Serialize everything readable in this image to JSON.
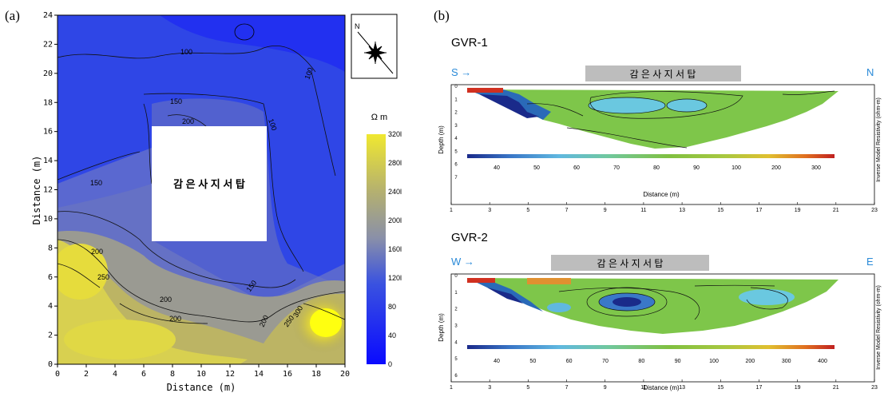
{
  "panel_a": {
    "label": "(a)",
    "x_axis_label": "Distance (m)",
    "y_axis_label": "Distance (m)",
    "x_ticks": [
      "0",
      "2",
      "4",
      "6",
      "8",
      "10",
      "12",
      "14",
      "16",
      "18",
      "20"
    ],
    "y_ticks": [
      "0",
      "2",
      "4",
      "6",
      "8",
      "10",
      "12",
      "14",
      "16",
      "18",
      "20",
      "22",
      "24"
    ],
    "box_label": "감 은 사 지 서 탑",
    "contour_labels": [
      "100",
      "100",
      "150",
      "200",
      "150",
      "200",
      "250",
      "200",
      "200",
      "150",
      "200",
      "250",
      "300",
      "100"
    ],
    "north_label": "N",
    "colorbar_title": "Ω m",
    "colorbar_ticks": [
      "0",
      "40",
      "80",
      "120",
      "160",
      "200",
      "240",
      "280",
      "320"
    ],
    "colorbar_display_ticks": [
      "320l",
      "280l",
      "240l",
      "200l",
      "160l",
      "120l",
      "80",
      "40",
      "0"
    ]
  },
  "panel_b": {
    "label": "(b)",
    "sections": [
      {
        "name": "GVR-1",
        "start_dir": "S →",
        "end_dir": "N",
        "bar_label": "감 은 사 지 서 탑",
        "depth_label": "Depth (m)",
        "depth_ticks": [
          "0",
          "1",
          "2",
          "3",
          "4",
          "5",
          "6",
          "7"
        ],
        "distance_label": "Distance (m)",
        "distance_ticks": [
          "1",
          "3",
          "5",
          "7",
          "9",
          "11",
          "13",
          "15",
          "17",
          "19",
          "21",
          "23"
        ],
        "colorbar_ticks": [
          "40",
          "50",
          "60",
          "70",
          "80",
          "90",
          "100",
          "200",
          "300"
        ],
        "right_label": "Inverse Model Resistivity (ohm-m)"
      },
      {
        "name": "GVR-2",
        "start_dir": "W →",
        "end_dir": "E",
        "bar_label": "감 은 사 지 서 탑",
        "depth_label": "Depth (m)",
        "depth_ticks": [
          "0",
          "1",
          "2",
          "3",
          "4",
          "5",
          "6"
        ],
        "distance_label": "Distance (m)",
        "distance_ticks": [
          "1",
          "3",
          "5",
          "7",
          "9",
          "11",
          "13",
          "15",
          "17",
          "19",
          "21",
          "23"
        ],
        "colorbar_ticks": [
          "40",
          "50",
          "60",
          "70",
          "80",
          "90",
          "100",
          "200",
          "300",
          "400"
        ],
        "right_label": "Inverse Model Resistivity (ohm-m)"
      }
    ]
  },
  "chart_data": [
    {
      "type": "heatmap",
      "title": "",
      "xlabel": "Distance (m)",
      "ylabel": "Distance (m)",
      "xlim": [
        0,
        20
      ],
      "ylim": [
        0,
        24
      ],
      "colorbar": {
        "label": "Ω m",
        "range": [
          0,
          320
        ],
        "colors": [
          "#1a1aff",
          "#5a6ad0",
          "#8f96a8",
          "#c8c080",
          "#e8e040"
        ]
      },
      "excluded_region": {
        "x": [
          6.5,
          14.5
        ],
        "y": [
          8.5,
          16.5
        ],
        "label": "감 은 사 지 서 탑"
      },
      "contour_levels": [
        100,
        150,
        200,
        250,
        300
      ]
    },
    {
      "type": "heatmap",
      "title": "GVR-1",
      "xlabel": "Distance (m)",
      "ylabel": "Depth (m)",
      "xlim": [
        1,
        23
      ],
      "ylim": [
        7,
        0
      ],
      "colorbar": {
        "label": "Inverse Model Resistivity (ohm-m)",
        "ticks": [
          40,
          50,
          60,
          70,
          80,
          90,
          100,
          200,
          300
        ]
      }
    },
    {
      "type": "heatmap",
      "title": "GVR-2",
      "xlabel": "Distance (m)",
      "ylabel": "Depth (m)",
      "xlim": [
        1,
        23
      ],
      "ylim": [
        6,
        0
      ],
      "colorbar": {
        "label": "Inverse Model Resistivity (ohm-m)",
        "ticks": [
          40,
          50,
          60,
          70,
          80,
          90,
          100,
          200,
          300,
          400
        ]
      }
    }
  ]
}
